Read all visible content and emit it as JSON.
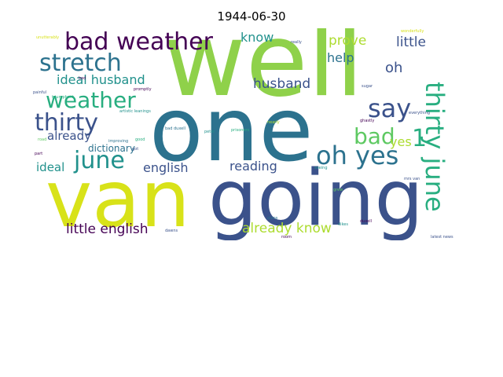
{
  "title": "1944-06-30",
  "colors": {
    "background": "#ffffff",
    "palette": [
      "#440154",
      "#3b528b",
      "#2c728e",
      "#21918c",
      "#28ae80",
      "#5ec962",
      "#addc30",
      "#d8e219"
    ]
  },
  "words": [
    "well",
    "one",
    "going",
    "van",
    "bad weather",
    "stretch",
    "weather",
    "thirty",
    "june",
    "thirty june",
    "say",
    "bad",
    "oh yes",
    "yes",
    "ideal husband",
    "husband",
    "little",
    "prove",
    "know",
    "help",
    "oh",
    "already",
    "dictionary",
    "ideal",
    "english",
    "reading",
    "little english",
    "already know",
    "1",
    "painful",
    "triumphant",
    "promptly",
    "artistic leanings",
    "unutterably",
    "latest news",
    "road",
    "seeing",
    "mrs van",
    "duxell",
    "bad duxell",
    "prisoners",
    "really",
    "ghastly",
    "nearly",
    "wonderfully",
    "sugar",
    "dikes",
    "bed",
    "dawns",
    "improving",
    "room",
    "good",
    "grew",
    "got",
    "peter",
    "part",
    "everything",
    "plans"
  ]
}
